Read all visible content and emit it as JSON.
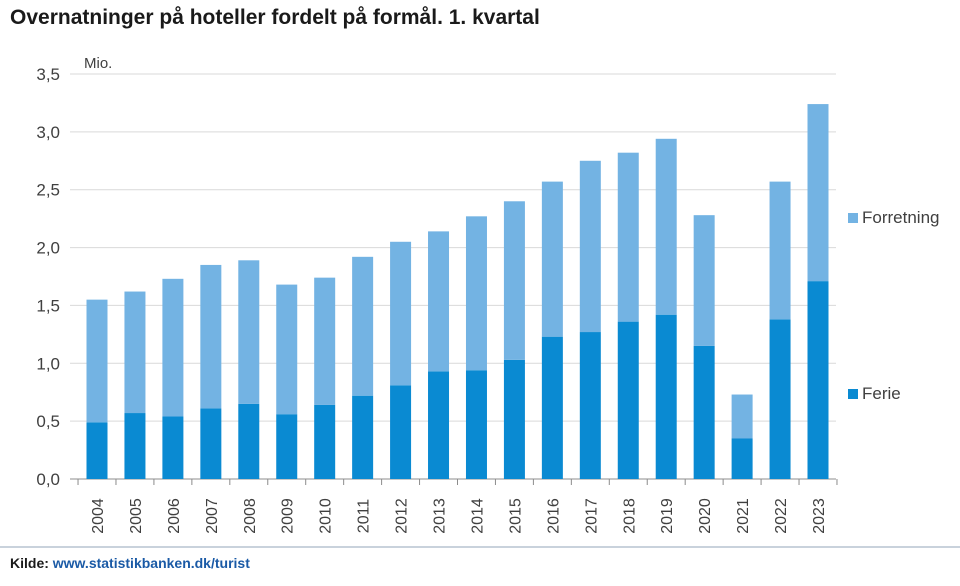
{
  "title": "Overnatninger på hoteller fordelt på formål. 1. kvartal",
  "source": {
    "label": "Kilde:",
    "link": "www.statistikbanken.dk/turist"
  },
  "colors": {
    "ferie": "#0a8ad2",
    "forretning": "#73b3e3",
    "grid": "#d9d9d9",
    "text": "#404040"
  },
  "chart_data": {
    "type": "bar",
    "stacked": true,
    "unit_label": "Mio.",
    "categories": [
      "2004",
      "2005",
      "2006",
      "2007",
      "2008",
      "2009",
      "2010",
      "2011",
      "2012",
      "2013",
      "2014",
      "2015",
      "2016",
      "2017",
      "2018",
      "2019",
      "2020",
      "2021",
      "2022",
      "2023"
    ],
    "series": [
      {
        "name": "Ferie",
        "values": [
          0.49,
          0.57,
          0.54,
          0.61,
          0.65,
          0.56,
          0.64,
          0.72,
          0.81,
          0.93,
          0.94,
          1.03,
          1.23,
          1.27,
          1.36,
          1.42,
          1.15,
          0.35,
          1.38,
          1.71
        ]
      },
      {
        "name": "Forretning",
        "values": [
          1.06,
          1.05,
          1.19,
          1.24,
          1.24,
          1.12,
          1.1,
          1.2,
          1.24,
          1.21,
          1.33,
          1.37,
          1.34,
          1.48,
          1.46,
          1.52,
          1.13,
          0.38,
          1.19,
          1.53
        ]
      }
    ],
    "y_ticks": [
      "0,0",
      "0,5",
      "1,0",
      "1,5",
      "2,0",
      "2,5",
      "3,0",
      "3,5"
    ],
    "ylim": [
      0,
      3.5
    ],
    "grid": true,
    "legend_placement": "right"
  }
}
